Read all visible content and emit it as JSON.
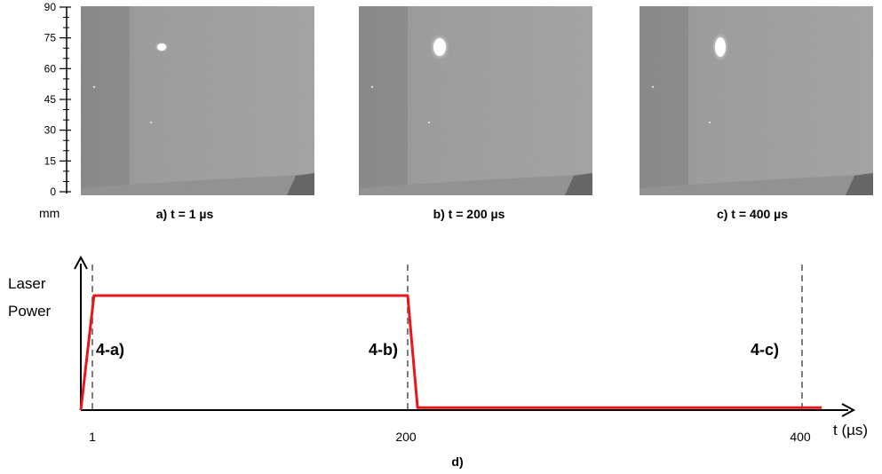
{
  "scale": {
    "ticks": [
      "90",
      "75",
      "60",
      "45",
      "30",
      "15",
      "0"
    ],
    "unit": "mm"
  },
  "frames": [
    {
      "caption": "a)  t = 1 µs"
    },
    {
      "caption": "b) t = 200 µs"
    },
    {
      "caption": "c) t = 400 µs"
    }
  ],
  "chart_data": {
    "type": "line",
    "ylabel_line1": "Laser",
    "ylabel_line2": "Power",
    "xlabel": "t (µs)",
    "x_ticks": [
      "1",
      "200",
      "400"
    ],
    "markers": [
      {
        "x": 1,
        "label": "4-a)"
      },
      {
        "x": 200,
        "label": "4-b)"
      },
      {
        "x": 400,
        "label": "4-c)"
      }
    ],
    "series": [
      {
        "color": "#e8161b",
        "points": [
          [
            0,
            0
          ],
          [
            2,
            0.96
          ],
          [
            200,
            0.96
          ],
          [
            205,
            0.02
          ],
          [
            410,
            0.02
          ]
        ]
      }
    ],
    "caption": "d)"
  },
  "colors": {
    "pulse": "#e8161b",
    "marker": "#7f7f7f",
    "frame_bg": "#9a9a9a"
  }
}
